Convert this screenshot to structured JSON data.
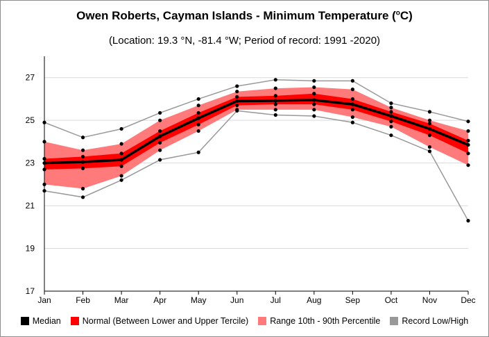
{
  "title_main": "Owen Roberts, Cayman Islands - Minimum Temperature (",
  "title_sup": "o",
  "title_end": "C)",
  "subtitle": "(Location: 19.3 °N, -81.4 °W; Period of record: 1991 -2020)",
  "colors": {
    "median": "#000000",
    "normal": "#ff0000",
    "range": "#ff7b7b",
    "record": "#999999"
  },
  "chart_data": {
    "type": "line",
    "categories": [
      "Jan",
      "Feb",
      "Mar",
      "Apr",
      "May",
      "Jun",
      "Jul",
      "Aug",
      "Sep",
      "Oct",
      "Nov",
      "Dec"
    ],
    "ylim": [
      17,
      28
    ],
    "yticks": [
      "17",
      "19",
      "21",
      "23",
      "25",
      "27"
    ],
    "grid": "horizontal",
    "legend_position": "bottom",
    "series": [
      {
        "name": "Median",
        "values": [
          23.0,
          23.05,
          23.15,
          24.25,
          25.1,
          25.9,
          25.92,
          25.95,
          25.75,
          25.2,
          24.6,
          23.85
        ]
      },
      {
        "name": "Normal (Between Lower and Upper Tercile)",
        "low": [
          22.7,
          22.75,
          22.85,
          23.95,
          24.8,
          25.7,
          25.75,
          25.75,
          25.5,
          24.95,
          24.3,
          23.45
        ],
        "high": [
          23.2,
          23.3,
          23.45,
          24.5,
          25.35,
          26.1,
          26.15,
          26.25,
          26.0,
          25.4,
          24.85,
          24.05
        ]
      },
      {
        "name": "Range 10th - 90th Percentile",
        "low": [
          22.0,
          21.8,
          22.4,
          23.6,
          24.5,
          25.5,
          25.5,
          25.5,
          25.15,
          24.7,
          23.75,
          22.9
        ],
        "high": [
          24.0,
          23.6,
          23.9,
          25.0,
          25.7,
          26.35,
          26.5,
          26.55,
          26.45,
          25.6,
          25.0,
          24.5
        ]
      },
      {
        "name": "Record Low/High",
        "low": [
          21.7,
          21.4,
          22.2,
          23.15,
          23.5,
          25.45,
          25.25,
          25.2,
          24.9,
          24.3,
          23.55,
          20.3
        ],
        "high": [
          24.9,
          24.2,
          24.6,
          25.35,
          26.0,
          26.6,
          26.9,
          26.85,
          26.85,
          25.8,
          25.4,
          24.95
        ]
      }
    ]
  }
}
